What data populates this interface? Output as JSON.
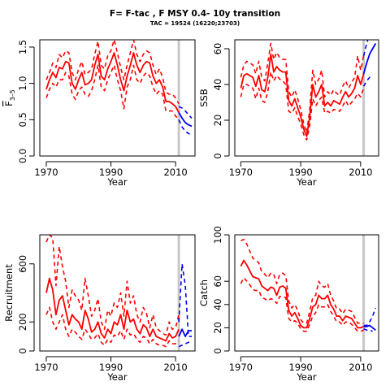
{
  "title": "F= F-tac , F MSY 0.4-  10y transition",
  "subtitle": "TAC = 19524 (16220;23703)",
  "colors": {
    "historical": "#ff0000",
    "projection": "#0000ff",
    "marker": "#c8c8c8",
    "axis": "#000000"
  },
  "marker_year": 2011,
  "chart_data": [
    {
      "type": "line",
      "ylabel_main": "F",
      "ylabel_sub": "3–5",
      "xlabel": "Year",
      "xlim": [
        1968,
        2016
      ],
      "ylim": [
        0,
        1.6
      ],
      "xticks": [
        1970,
        1990,
        2010
      ],
      "yticks": [
        0.0,
        0.5,
        1.0,
        1.5
      ],
      "x_hist": [
        1970,
        1971,
        1972,
        1973,
        1974,
        1975,
        1976,
        1977,
        1978,
        1979,
        1980,
        1981,
        1982,
        1983,
        1984,
        1985,
        1986,
        1987,
        1988,
        1989,
        1990,
        1991,
        1992,
        1993,
        1994,
        1995,
        1996,
        1997,
        1998,
        1999,
        2000,
        2001,
        2002,
        2003,
        2004,
        2005,
        2006,
        2007,
        2008,
        2009,
        2010,
        2011
      ],
      "series": [
        {
          "role": "historical",
          "style": "solid",
          "values": [
            0.92,
            1.05,
            1.15,
            1.08,
            1.22,
            1.2,
            1.3,
            1.28,
            1.0,
            0.92,
            1.05,
            1.15,
            0.98,
            1.0,
            1.05,
            1.25,
            1.4,
            1.1,
            1.05,
            1.2,
            1.3,
            1.42,
            1.25,
            1.05,
            0.9,
            1.1,
            1.25,
            1.42,
            1.25,
            1.15,
            1.25,
            1.3,
            1.28,
            1.1,
            1.0,
            1.05,
            0.95,
            0.75,
            0.75,
            0.72,
            0.68,
            0.6
          ]
        },
        {
          "role": "historical",
          "style": "dashed",
          "values": [
            0.8,
            0.92,
            1.0,
            0.95,
            1.05,
            1.05,
            1.15,
            1.1,
            0.85,
            0.78,
            0.9,
            0.95,
            0.85,
            0.82,
            0.9,
            1.05,
            1.25,
            0.95,
            0.9,
            1.05,
            1.15,
            1.25,
            1.05,
            0.9,
            0.65,
            0.95,
            1.05,
            1.25,
            1.05,
            1.0,
            1.1,
            1.15,
            1.1,
            0.95,
            0.85,
            0.9,
            0.85,
            0.62,
            0.62,
            0.62,
            0.55,
            0.5
          ]
        },
        {
          "role": "historical",
          "style": "dashed",
          "values": [
            1.05,
            1.15,
            1.28,
            1.22,
            1.4,
            1.35,
            1.45,
            1.42,
            1.15,
            1.05,
            1.2,
            1.3,
            1.12,
            1.15,
            1.2,
            1.4,
            1.58,
            1.25,
            1.2,
            1.38,
            1.45,
            1.6,
            1.42,
            1.22,
            1.05,
            1.25,
            1.42,
            1.6,
            1.4,
            1.3,
            1.4,
            1.45,
            1.42,
            1.25,
            1.12,
            1.2,
            1.08,
            0.88,
            0.85,
            0.85,
            0.8,
            0.72
          ]
        },
        {
          "role": "projection",
          "style": "solid",
          "x": [
            2011,
            2012,
            2013,
            2014,
            2015
          ],
          "values": [
            0.6,
            0.52,
            0.46,
            0.43,
            0.41
          ]
        },
        {
          "role": "projection",
          "style": "dashed",
          "x": [
            2011,
            2012,
            2013,
            2014,
            2015
          ],
          "values": [
            0.68,
            0.66,
            0.62,
            0.57,
            0.52
          ]
        },
        {
          "role": "projection",
          "style": "dashed",
          "x": [
            2011,
            2012,
            2013,
            2014,
            2015
          ],
          "values": [
            0.5,
            0.4,
            0.34,
            0.31,
            0.29
          ]
        }
      ]
    },
    {
      "type": "line",
      "ylabel_main": "SSB",
      "xlabel": "Year",
      "xlim": [
        1968,
        2016
      ],
      "ylim": [
        0,
        65
      ],
      "xticks": [
        1970,
        1990,
        2010
      ],
      "yticks": [
        0,
        20,
        40,
        60
      ],
      "x_hist": [
        1970,
        1971,
        1972,
        1973,
        1974,
        1975,
        1976,
        1977,
        1978,
        1979,
        1980,
        1981,
        1982,
        1983,
        1984,
        1985,
        1986,
        1987,
        1988,
        1989,
        1990,
        1991,
        1992,
        1993,
        1994,
        1995,
        1996,
        1997,
        1998,
        1999,
        2000,
        2001,
        2002,
        2003,
        2004,
        2005,
        2006,
        2007,
        2008,
        2009,
        2010,
        2011
      ],
      "series": [
        {
          "role": "historical",
          "style": "solid",
          "values": [
            38,
            45,
            46,
            45,
            44,
            39,
            45,
            37,
            36,
            44,
            57,
            47,
            50,
            48,
            47,
            47,
            31,
            28,
            32,
            27,
            22,
            15,
            11,
            22,
            40,
            33,
            36,
            40,
            28,
            30,
            28,
            31,
            30,
            29,
            33,
            36,
            33,
            35,
            38,
            45,
            40,
            46
          ]
        },
        {
          "role": "historical",
          "style": "dashed",
          "values": [
            33,
            40,
            40,
            39,
            38,
            32,
            38,
            31,
            30,
            36,
            47,
            42,
            45,
            43,
            42,
            40,
            25,
            24,
            27,
            22,
            18,
            12,
            9,
            17,
            32,
            28,
            31,
            33,
            24,
            25,
            24,
            26,
            26,
            25,
            28,
            31,
            28,
            30,
            32,
            35,
            33,
            38
          ]
        },
        {
          "role": "historical",
          "style": "dashed",
          "values": [
            44,
            51,
            53,
            52,
            51,
            46,
            53,
            44,
            42,
            52,
            63,
            54,
            58,
            55,
            54,
            54,
            36,
            33,
            37,
            32,
            26,
            18,
            13,
            26,
            48,
            40,
            43,
            48,
            33,
            36,
            34,
            37,
            35,
            34,
            39,
            42,
            38,
            41,
            44,
            56,
            48,
            56
          ]
        },
        {
          "role": "projection",
          "style": "solid",
          "x": [
            2011,
            2012,
            2013,
            2014,
            2015
          ],
          "values": [
            46,
            52,
            57,
            60,
            63
          ]
        },
        {
          "role": "projection",
          "style": "dashed",
          "x": [
            2011,
            2012,
            2013,
            2014
          ],
          "values": [
            39,
            42,
            44,
            43
          ]
        },
        {
          "role": "projection",
          "style": "dashed",
          "x": [
            2011,
            2012,
            2013
          ],
          "values": [
            56,
            63,
            68
          ]
        }
      ]
    },
    {
      "type": "line",
      "ylabel_main": "Recruitment",
      "xlabel": "Year",
      "xlim": [
        1968,
        2016
      ],
      "ylim": [
        0,
        800
      ],
      "xticks": [
        1970,
        1990,
        2010
      ],
      "yticks": [
        0,
        200,
        600
      ],
      "x_hist": [
        1970,
        1971,
        1972,
        1973,
        1974,
        1975,
        1976,
        1977,
        1978,
        1979,
        1980,
        1981,
        1982,
        1983,
        1984,
        1985,
        1986,
        1987,
        1988,
        1989,
        1990,
        1991,
        1992,
        1993,
        1994,
        1995,
        1996,
        1997,
        1998,
        1999,
        2000,
        2001,
        2002,
        2003,
        2004,
        2005,
        2006,
        2007,
        2008,
        2009,
        2010,
        2011
      ],
      "series": [
        {
          "role": "historical",
          "style": "solid",
          "values": [
            400,
            500,
            420,
            250,
            350,
            380,
            280,
            180,
            250,
            220,
            200,
            150,
            280,
            220,
            130,
            150,
            200,
            120,
            90,
            150,
            120,
            200,
            180,
            250,
            150,
            280,
            200,
            220,
            150,
            120,
            180,
            160,
            100,
            150,
            100,
            90,
            80,
            70,
            120,
            90,
            100,
            150
          ]
        },
        {
          "role": "historical",
          "style": "dashed",
          "values": [
            250,
            300,
            200,
            150,
            200,
            250,
            150,
            100,
            150,
            130,
            100,
            80,
            150,
            120,
            80,
            90,
            120,
            60,
            40,
            80,
            60,
            110,
            100,
            140,
            80,
            150,
            110,
            120,
            80,
            60,
            100,
            90,
            50,
            80,
            50,
            40,
            40,
            30,
            70,
            50,
            50,
            70
          ]
        },
        {
          "role": "historical",
          "style": "dashed",
          "values": [
            750,
            800,
            780,
            450,
            720,
            580,
            480,
            300,
            420,
            380,
            350,
            280,
            500,
            380,
            240,
            280,
            360,
            200,
            150,
            280,
            240,
            330,
            300,
            400,
            240,
            480,
            330,
            380,
            250,
            200,
            300,
            260,
            160,
            250,
            160,
            140,
            120,
            110,
            200,
            150,
            160,
            250
          ]
        },
        {
          "role": "projection",
          "style": "solid",
          "x": [
            2011,
            2012,
            2013,
            2014,
            2015
          ],
          "values": [
            100,
            150,
            100,
            140,
            140
          ]
        },
        {
          "role": "projection",
          "style": "dashed",
          "x": [
            2011,
            2012,
            2013,
            2014,
            2015
          ],
          "values": [
            30,
            40,
            50,
            60,
            60
          ]
        },
        {
          "role": "projection",
          "style": "dashed",
          "x": [
            2011,
            2012,
            2013,
            2014,
            2015
          ],
          "values": [
            200,
            600,
            450,
            100,
            100
          ]
        }
      ]
    },
    {
      "type": "line",
      "ylabel_main": "Catch",
      "xlabel": "Year",
      "xlim": [
        1968,
        2016
      ],
      "ylim": [
        0,
        100
      ],
      "xticks": [
        1970,
        1990,
        2010
      ],
      "yticks": [
        0,
        20,
        40,
        60,
        100
      ],
      "x_hist": [
        1970,
        1971,
        1972,
        1973,
        1974,
        1975,
        1976,
        1977,
        1978,
        1979,
        1980,
        1981,
        1982,
        1983,
        1984,
        1985,
        1986,
        1987,
        1988,
        1989,
        1990,
        1991,
        1992,
        1993,
        1994,
        1995,
        1996,
        1997,
        1998,
        1999,
        2000,
        2001,
        2002,
        2003,
        2004,
        2005,
        2006,
        2007,
        2008,
        2009,
        2010,
        2011
      ],
      "series": [
        {
          "role": "historical",
          "style": "solid",
          "values": [
            73,
            78,
            74,
            69,
            64,
            63,
            62,
            56,
            54,
            52,
            55,
            54,
            48,
            55,
            56,
            54,
            35,
            30,
            33,
            28,
            22,
            20,
            20,
            28,
            38,
            40,
            48,
            45,
            45,
            48,
            40,
            36,
            30,
            30,
            26,
            30,
            29,
            28,
            24,
            20,
            20,
            21
          ]
        },
        {
          "role": "historical",
          "style": "dashed",
          "values": [
            58,
            63,
            60,
            57,
            53,
            52,
            52,
            46,
            45,
            43,
            45,
            44,
            41,
            47,
            47,
            46,
            28,
            25,
            26,
            24,
            19,
            17,
            17,
            23,
            30,
            33,
            40,
            38,
            38,
            40,
            34,
            30,
            25,
            25,
            22,
            25,
            25,
            23,
            20,
            17,
            17,
            18
          ]
        },
        {
          "role": "historical",
          "style": "dashed",
          "values": [
            95,
            96,
            92,
            86,
            80,
            78,
            76,
            68,
            66,
            63,
            67,
            66,
            58,
            66,
            67,
            65,
            43,
            37,
            40,
            35,
            27,
            24,
            24,
            34,
            46,
            48,
            60,
            56,
            55,
            58,
            48,
            43,
            36,
            36,
            32,
            36,
            35,
            34,
            29,
            24,
            24,
            24
          ]
        },
        {
          "role": "projection",
          "style": "solid",
          "x": [
            2011,
            2012,
            2013,
            2014,
            2015
          ],
          "values": [
            21,
            21,
            22,
            20,
            18
          ]
        },
        {
          "role": "projection",
          "style": "dashed",
          "x": [
            2011,
            2012,
            2013,
            2014
          ],
          "values": [
            19,
            18,
            18,
            17
          ]
        },
        {
          "role": "projection",
          "style": "dashed",
          "x": [
            2011,
            2012,
            2013,
            2014,
            2015
          ],
          "values": [
            22,
            22,
            25,
            30,
            37
          ]
        }
      ]
    }
  ]
}
